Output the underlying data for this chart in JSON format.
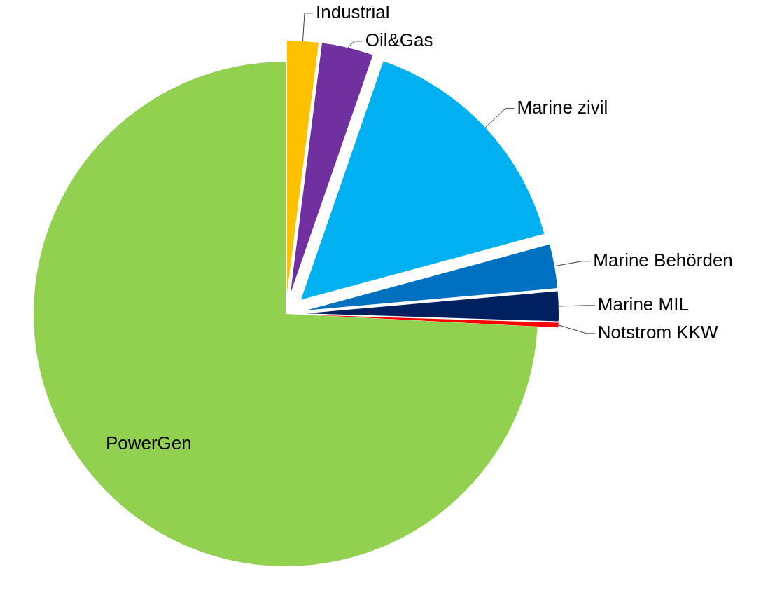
{
  "chart_data": {
    "type": "pie",
    "categories": [
      "Industrial",
      "Oil&Gas",
      "Marine zivil",
      "Marine Behörden",
      "Marine MIL",
      "Notstrom KKW",
      "PowerGen"
    ],
    "values": [
      2,
      3.3,
      15.5,
      2.8,
      1.9,
      0.3,
      74.2
    ],
    "colors": [
      "#ffc000",
      "#7030a0",
      "#00b0f0",
      "#0070c0",
      "#002060",
      "#ff0000",
      "#92d050"
    ],
    "legend": false
  }
}
